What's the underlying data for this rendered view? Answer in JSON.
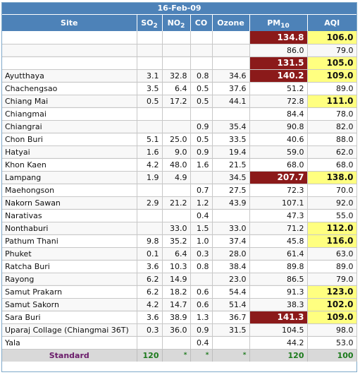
{
  "date": "16-Feb-09",
  "headers": {
    "site": "Site",
    "so2": {
      "main": "SO",
      "sub": "2"
    },
    "no2": {
      "main": "NO",
      "sub": "2"
    },
    "co": "CO",
    "ozone": "Ozone",
    "pm10": {
      "main": "PM",
      "sub": "10"
    },
    "aqi": "AQI"
  },
  "rows": [
    {
      "site": "",
      "so2": "",
      "no2": "",
      "co": "",
      "ozone": "",
      "pm10": "134.8",
      "aqi": "106.0",
      "pm_flag": "red",
      "aqi_flag": "yellow"
    },
    {
      "site": "",
      "so2": "",
      "no2": "",
      "co": "",
      "ozone": "",
      "pm10": "86.0",
      "aqi": "79.0",
      "pm_flag": "",
      "aqi_flag": ""
    },
    {
      "site": "",
      "so2": "",
      "no2": "",
      "co": "",
      "ozone": "",
      "pm10": "131.5",
      "aqi": "105.0",
      "pm_flag": "red",
      "aqi_flag": "yellow"
    },
    {
      "site": "Ayutthaya",
      "so2": "3.1",
      "no2": "32.8",
      "co": "0.8",
      "ozone": "34.6",
      "pm10": "140.2",
      "aqi": "109.0",
      "pm_flag": "red",
      "aqi_flag": "yellow"
    },
    {
      "site": "Chachengsao",
      "so2": "3.5",
      "no2": "6.4",
      "co": "0.5",
      "ozone": "37.6",
      "pm10": "51.2",
      "aqi": "89.0",
      "pm_flag": "",
      "aqi_flag": ""
    },
    {
      "site": "Chiang Mai",
      "so2": "0.5",
      "no2": "17.2",
      "co": "0.5",
      "ozone": "44.1",
      "pm10": "72.8",
      "aqi": "111.0",
      "pm_flag": "",
      "aqi_flag": "yellow"
    },
    {
      "site": "Chiangmai",
      "so2": "",
      "no2": "",
      "co": "",
      "ozone": "",
      "pm10": "84.4",
      "aqi": "78.0",
      "pm_flag": "",
      "aqi_flag": ""
    },
    {
      "site": "Chiangrai",
      "so2": "",
      "no2": "",
      "co": "0.9",
      "ozone": "35.4",
      "pm10": "90.8",
      "aqi": "82.0",
      "pm_flag": "",
      "aqi_flag": ""
    },
    {
      "site": "Chon Buri",
      "so2": "5.1",
      "no2": "25.0",
      "co": "0.5",
      "ozone": "33.5",
      "pm10": "40.6",
      "aqi": "88.0",
      "pm_flag": "",
      "aqi_flag": ""
    },
    {
      "site": "Hatyai",
      "so2": "1.6",
      "no2": "9.0",
      "co": "0.9",
      "ozone": "19.4",
      "pm10": "59.0",
      "aqi": "62.0",
      "pm_flag": "",
      "aqi_flag": ""
    },
    {
      "site": "Khon Kaen",
      "so2": "4.2",
      "no2": "48.0",
      "co": "1.6",
      "ozone": "21.5",
      "pm10": "68.0",
      "aqi": "68.0",
      "pm_flag": "",
      "aqi_flag": ""
    },
    {
      "site": "Lampang",
      "so2": "1.9",
      "no2": "4.9",
      "co": "",
      "ozone": "34.5",
      "pm10": "207.7",
      "aqi": "138.0",
      "pm_flag": "red",
      "aqi_flag": "yellow"
    },
    {
      "site": "Maehongson",
      "so2": "",
      "no2": "",
      "co": "0.7",
      "ozone": "27.5",
      "pm10": "72.3",
      "aqi": "70.0",
      "pm_flag": "",
      "aqi_flag": ""
    },
    {
      "site": "Nakorn Sawan",
      "so2": "2.9",
      "no2": "21.2",
      "co": "1.2",
      "ozone": "43.9",
      "pm10": "107.1",
      "aqi": "92.0",
      "pm_flag": "",
      "aqi_flag": ""
    },
    {
      "site": "Narativas",
      "so2": "",
      "no2": "",
      "co": "0.4",
      "ozone": "",
      "pm10": "47.3",
      "aqi": "55.0",
      "pm_flag": "",
      "aqi_flag": ""
    },
    {
      "site": "Nonthaburi",
      "so2": "",
      "no2": "33.0",
      "co": "1.5",
      "ozone": "33.0",
      "pm10": "71.2",
      "aqi": "112.0",
      "pm_flag": "",
      "aqi_flag": "yellow"
    },
    {
      "site": "Pathum Thani",
      "so2": "9.8",
      "no2": "35.2",
      "co": "1.0",
      "ozone": "37.4",
      "pm10": "45.8",
      "aqi": "116.0",
      "pm_flag": "",
      "aqi_flag": "yellow"
    },
    {
      "site": "Phuket",
      "so2": "0.1",
      "no2": "6.4",
      "co": "0.3",
      "ozone": "28.0",
      "pm10": "61.4",
      "aqi": "63.0",
      "pm_flag": "",
      "aqi_flag": ""
    },
    {
      "site": "Ratcha Buri",
      "so2": "3.6",
      "no2": "10.3",
      "co": "0.8",
      "ozone": "38.4",
      "pm10": "89.8",
      "aqi": "89.0",
      "pm_flag": "",
      "aqi_flag": ""
    },
    {
      "site": "Rayong",
      "so2": "6.2",
      "no2": "14.9",
      "co": "",
      "ozone": "23.0",
      "pm10": "86.5",
      "aqi": "79.0",
      "pm_flag": "",
      "aqi_flag": ""
    },
    {
      "site": "Samut Prakarn",
      "so2": "6.2",
      "no2": "18.2",
      "co": "0.6",
      "ozone": "54.4",
      "pm10": "91.3",
      "aqi": "123.0",
      "pm_flag": "",
      "aqi_flag": "yellow"
    },
    {
      "site": "Samut Sakorn",
      "so2": "4.2",
      "no2": "14.7",
      "co": "0.6",
      "ozone": "51.4",
      "pm10": "38.3",
      "aqi": "102.0",
      "pm_flag": "",
      "aqi_flag": "yellow"
    },
    {
      "site": "Sara Buri",
      "so2": "3.6",
      "no2": "38.9",
      "co": "1.3",
      "ozone": "36.7",
      "pm10": "141.3",
      "aqi": "109.0",
      "pm_flag": "red",
      "aqi_flag": "yellow"
    },
    {
      "site": "Uparaj Collage (Chiangmai 36T)",
      "so2": "0.3",
      "no2": "36.0",
      "co": "0.9",
      "ozone": "31.5",
      "pm10": "104.5",
      "aqi": "98.0",
      "pm_flag": "",
      "aqi_flag": ""
    },
    {
      "site": "Yala",
      "so2": "",
      "no2": "",
      "co": "0.4",
      "ozone": "",
      "pm10": "44.2",
      "aqi": "53.0",
      "pm_flag": "",
      "aqi_flag": ""
    }
  ],
  "standard": {
    "label": "Standard",
    "so2": "120",
    "no2": "*",
    "co": "*",
    "ozone": "*",
    "pm10": "120",
    "aqi": "100"
  },
  "colors": {
    "header_bg": "#4d82b8",
    "pm_exceed_bg": "#8b1a1a",
    "aqi_exceed_bg": "#ffff80",
    "standard_label": "#6a1b6a",
    "standard_value": "#1c7a1c"
  }
}
